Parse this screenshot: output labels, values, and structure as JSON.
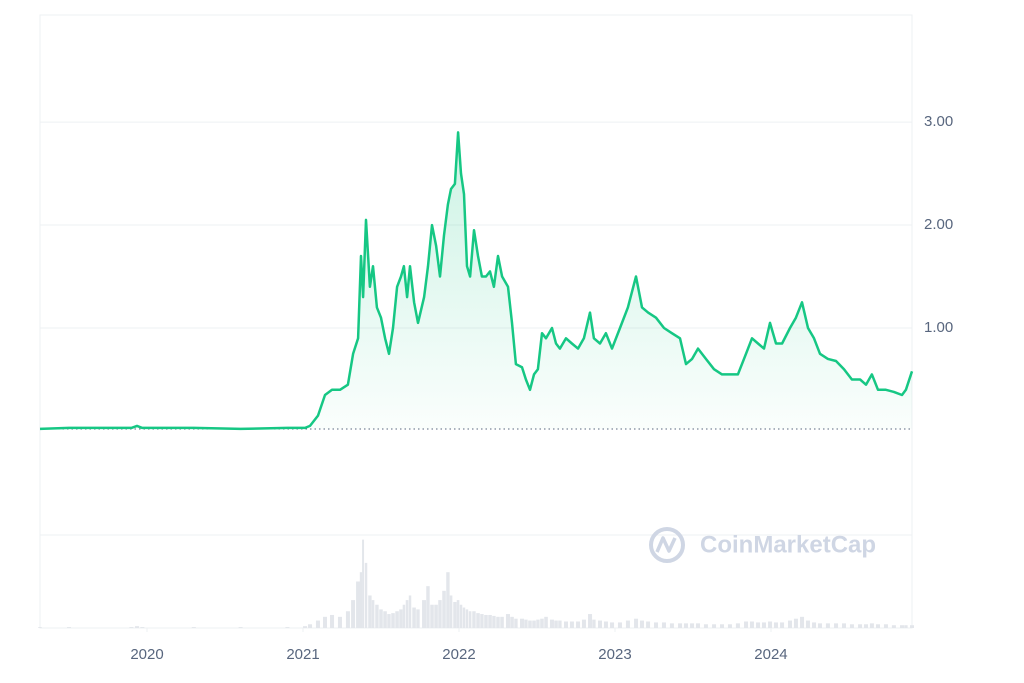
{
  "chart_data": {
    "type": "line",
    "watermark": "CoinMarketCap",
    "x": [
      2019.314,
      2019.5,
      2019.9,
      2019.936,
      2019.97,
      2020.3,
      2020.6,
      2020.9,
      2021.013,
      2021.045,
      2021.096,
      2021.141,
      2021.186,
      2021.237,
      2021.288,
      2021.321,
      2021.353,
      2021.372,
      2021.385,
      2021.404,
      2021.429,
      2021.449,
      2021.474,
      2021.5,
      2021.526,
      2021.551,
      2021.577,
      2021.603,
      2021.628,
      2021.647,
      2021.667,
      2021.686,
      2021.712,
      2021.737,
      2021.776,
      2021.801,
      2021.827,
      2021.853,
      2021.878,
      2021.904,
      2021.929,
      2021.949,
      2021.974,
      2021.994,
      2022.013,
      2022.032,
      2022.051,
      2022.071,
      2022.096,
      2022.122,
      2022.147,
      2022.173,
      2022.199,
      2022.224,
      2022.25,
      2022.276,
      2022.314,
      2022.34,
      2022.365,
      2022.404,
      2022.429,
      2022.455,
      2022.481,
      2022.506,
      2022.532,
      2022.558,
      2022.596,
      2022.622,
      2022.647,
      2022.686,
      2022.724,
      2022.763,
      2022.801,
      2022.84,
      2022.865,
      2022.904,
      2022.942,
      2022.981,
      2023.032,
      2023.083,
      2023.135,
      2023.173,
      2023.212,
      2023.263,
      2023.314,
      2023.365,
      2023.417,
      2023.455,
      2023.494,
      2023.532,
      2023.583,
      2023.635,
      2023.686,
      2023.737,
      2023.788,
      2023.84,
      2023.878,
      2023.917,
      2023.955,
      2023.994,
      2024.032,
      2024.071,
      2024.122,
      2024.16,
      2024.199,
      2024.237,
      2024.276,
      2024.314,
      2024.365,
      2024.417,
      2024.468,
      2024.519,
      2024.571,
      2024.609,
      2024.647,
      2024.686,
      2024.737,
      2024.788,
      2024.84,
      2024.865,
      2024.904
    ],
    "series": [
      {
        "name": "Price",
        "color": "#16c784",
        "values": [
          0.02,
          0.03,
          0.03,
          0.05,
          0.03,
          0.03,
          0.02,
          0.03,
          0.03,
          0.05,
          0.15,
          0.35,
          0.4,
          0.4,
          0.45,
          0.75,
          0.9,
          1.7,
          1.3,
          2.05,
          1.4,
          1.6,
          1.2,
          1.1,
          0.9,
          0.75,
          1.0,
          1.4,
          1.5,
          1.6,
          1.3,
          1.6,
          1.25,
          1.05,
          1.3,
          1.6,
          2.0,
          1.8,
          1.5,
          1.9,
          2.2,
          2.35,
          2.4,
          2.9,
          2.5,
          2.3,
          1.6,
          1.5,
          1.95,
          1.7,
          1.5,
          1.5,
          1.55,
          1.4,
          1.7,
          1.5,
          1.4,
          1.05,
          0.65,
          0.62,
          0.5,
          0.4,
          0.55,
          0.6,
          0.95,
          0.9,
          1.0,
          0.85,
          0.8,
          0.9,
          0.85,
          0.8,
          0.9,
          1.15,
          0.9,
          0.85,
          0.95,
          0.8,
          1.0,
          1.2,
          1.5,
          1.2,
          1.15,
          1.1,
          1.0,
          0.95,
          0.9,
          0.65,
          0.7,
          0.8,
          0.7,
          0.6,
          0.55,
          0.55,
          0.55,
          0.75,
          0.9,
          0.85,
          0.8,
          1.05,
          0.85,
          0.85,
          1.0,
          1.1,
          1.25,
          1.0,
          0.9,
          0.75,
          0.7,
          0.68,
          0.6,
          0.5,
          0.5,
          0.45,
          0.55,
          0.4,
          0.4,
          0.38,
          0.35,
          0.4,
          0.58
        ]
      },
      {
        "name": "Volume",
        "color": "#e3e6eb",
        "axis": "volume",
        "values": [
          1,
          1,
          1,
          2,
          1,
          1,
          1,
          1,
          2,
          4,
          8,
          12,
          14,
          12,
          18,
          30,
          50,
          60,
          95,
          70,
          35,
          30,
          25,
          20,
          18,
          15,
          16,
          18,
          20,
          25,
          30,
          35,
          22,
          20,
          30,
          45,
          25,
          25,
          30,
          40,
          60,
          35,
          28,
          30,
          25,
          22,
          20,
          18,
          18,
          16,
          15,
          14,
          14,
          13,
          12,
          12,
          15,
          12,
          10,
          10,
          9,
          8,
          8,
          9,
          10,
          12,
          9,
          8,
          8,
          7,
          7,
          7,
          9,
          15,
          9,
          8,
          7,
          6,
          6,
          8,
          10,
          8,
          7,
          6,
          6,
          5,
          5,
          5,
          5,
          5,
          4,
          4,
          4,
          4,
          5,
          7,
          7,
          6,
          6,
          7,
          6,
          6,
          8,
          10,
          12,
          8,
          6,
          5,
          5,
          5,
          5,
          4,
          4,
          4,
          5,
          4,
          4,
          3,
          3,
          3,
          3
        ]
      }
    ],
    "xlim": [
      2019.314,
      2024.904
    ],
    "xticks": [
      2020,
      2021,
      2022,
      2023,
      2024
    ],
    "ylim": [
      -1.01,
      4.04
    ],
    "yticks": [
      {
        "value": 1,
        "label": "1.00"
      },
      {
        "value": 2,
        "label": "2.00"
      },
      {
        "value": 3,
        "label": "3.00"
      }
    ],
    "volume_lim": [
      0,
      100
    ],
    "grid": true
  }
}
